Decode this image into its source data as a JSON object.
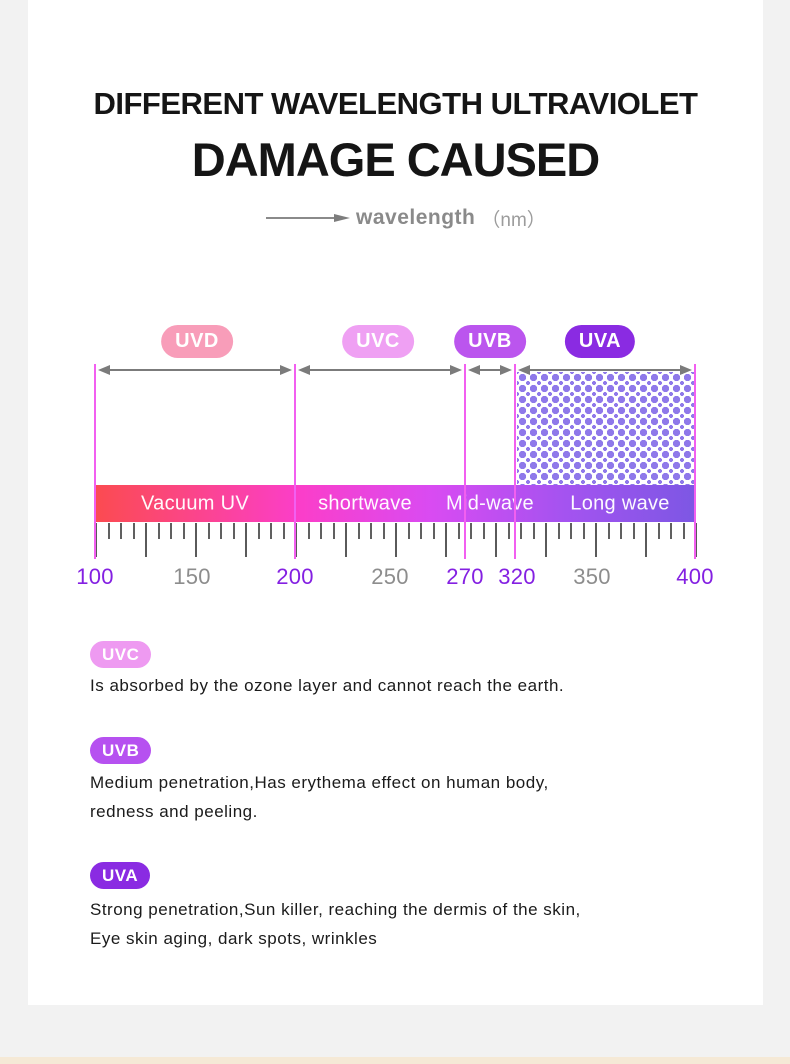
{
  "page": {
    "bg_color": "#f2f2f2",
    "card_color": "#ffffff",
    "footer_strip_color": "#f5e9d6"
  },
  "header": {
    "title_line1": "DIFFERENT WAVELENGTH ULTRAVIOLET",
    "title_line2": "DAMAGE CAUSED",
    "axis_caption": "wavelength",
    "axis_unit": "（nm）"
  },
  "chart": {
    "type": "wavelength-scale-diagram",
    "bands": [
      {
        "name": "UVD",
        "pill_color": "#f89db9",
        "range_nm": [
          100,
          200
        ],
        "segment_label": "Vacuum UV"
      },
      {
        "name": "UVC",
        "pill_color": "#efa0f3",
        "range_nm": [
          200,
          270
        ],
        "segment_label": "shortwave"
      },
      {
        "name": "UVB",
        "pill_color": "#bb55ee",
        "range_nm": [
          270,
          320
        ],
        "segment_label": "Mid-wave"
      },
      {
        "name": "UVA",
        "pill_color": "#8a2be2",
        "range_nm": [
          320,
          400
        ],
        "segment_label": "Long wave"
      }
    ],
    "axis_ticks": [
      {
        "label": "100",
        "highlight": true
      },
      {
        "label": "150",
        "highlight": false
      },
      {
        "label": "200",
        "highlight": true
      },
      {
        "label": "250",
        "highlight": false
      },
      {
        "label": "270",
        "highlight": true
      },
      {
        "label": "320",
        "highlight": true
      },
      {
        "label": "350",
        "highlight": false
      },
      {
        "label": "400",
        "highlight": true
      }
    ],
    "highlight_color": "#8420e2",
    "muted_color": "#8d8d8d",
    "line_color": "#f25ff0",
    "bar_gradient": [
      "#fb4b50",
      "#fb3ec9",
      "#d94bf2",
      "#a553f0",
      "#7d57e4"
    ],
    "dot_color": "#8f79ea"
  },
  "legend": [
    {
      "name": "UVC",
      "pill_color": "#ee9af1",
      "lines": [
        "Is absorbed by the ozone layer and cannot reach the earth."
      ]
    },
    {
      "name": "UVB",
      "pill_color": "#b651f0",
      "lines": [
        "Medium penetration,Has erythema effect on human body,",
        "redness and peeling."
      ]
    },
    {
      "name": "UVA",
      "pill_color": "#8a2be2",
      "lines": [
        "Strong penetration,Sun killer, reaching the dermis of the skin,",
        "Eye skin aging, dark spots, wrinkles"
      ]
    }
  ]
}
